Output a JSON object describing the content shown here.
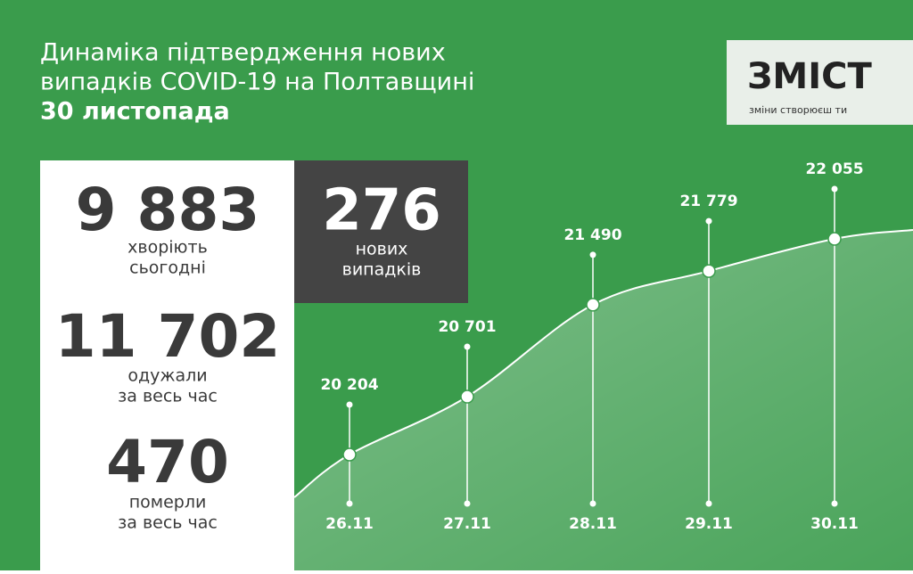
{
  "header": {
    "title_lines": [
      "Динаміка підтвердження нових",
      "випадків COVID-19 на Полтавщині"
    ],
    "date": "30 листопада"
  },
  "logo": {
    "name": "ЗМІСТ",
    "tagline": "зміни створюєш ти"
  },
  "stats": [
    {
      "value": "9 883",
      "label_lines": [
        "хворіють",
        "сьогодні"
      ]
    },
    {
      "value": "11 702",
      "label_lines": [
        "одужали",
        "за весь час"
      ]
    },
    {
      "value": "470",
      "label_lines": [
        "померли",
        "за весь час"
      ]
    }
  ],
  "new_cases": {
    "value": "276",
    "label_lines": [
      "нових",
      "випадків"
    ]
  },
  "chart_data": {
    "type": "line",
    "categories": [
      "26.11",
      "27.11",
      "28.11",
      "29.11",
      "30.11"
    ],
    "values": [
      20204,
      20701,
      21490,
      21779,
      22055
    ],
    "value_labels": [
      "20 204",
      "20 701",
      "21 490",
      "21 779",
      "22 055"
    ],
    "color": "#ffffff"
  }
}
